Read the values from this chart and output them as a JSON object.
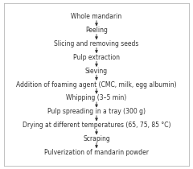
{
  "steps": [
    "Whole mandarin",
    "Peeling",
    "Slicing and removing seeds",
    "Pulp extraction",
    "Sieving",
    "Addition of foaming agent (CMC, milk, egg albumin)",
    "Whipping (3–5 min)",
    "Pulp spreading in a tray (300 g)",
    "Drying at different temperatures (65, 75, 85 °C)",
    "Scraping",
    "Pulverization of mandarin powder"
  ],
  "background_color": "#ffffff",
  "text_color": "#333333",
  "arrow_color": "#333333",
  "fontsize": 5.5,
  "border_color": "#aaaaaa",
  "figsize": [
    2.4,
    2.1
  ],
  "dpi": 100
}
